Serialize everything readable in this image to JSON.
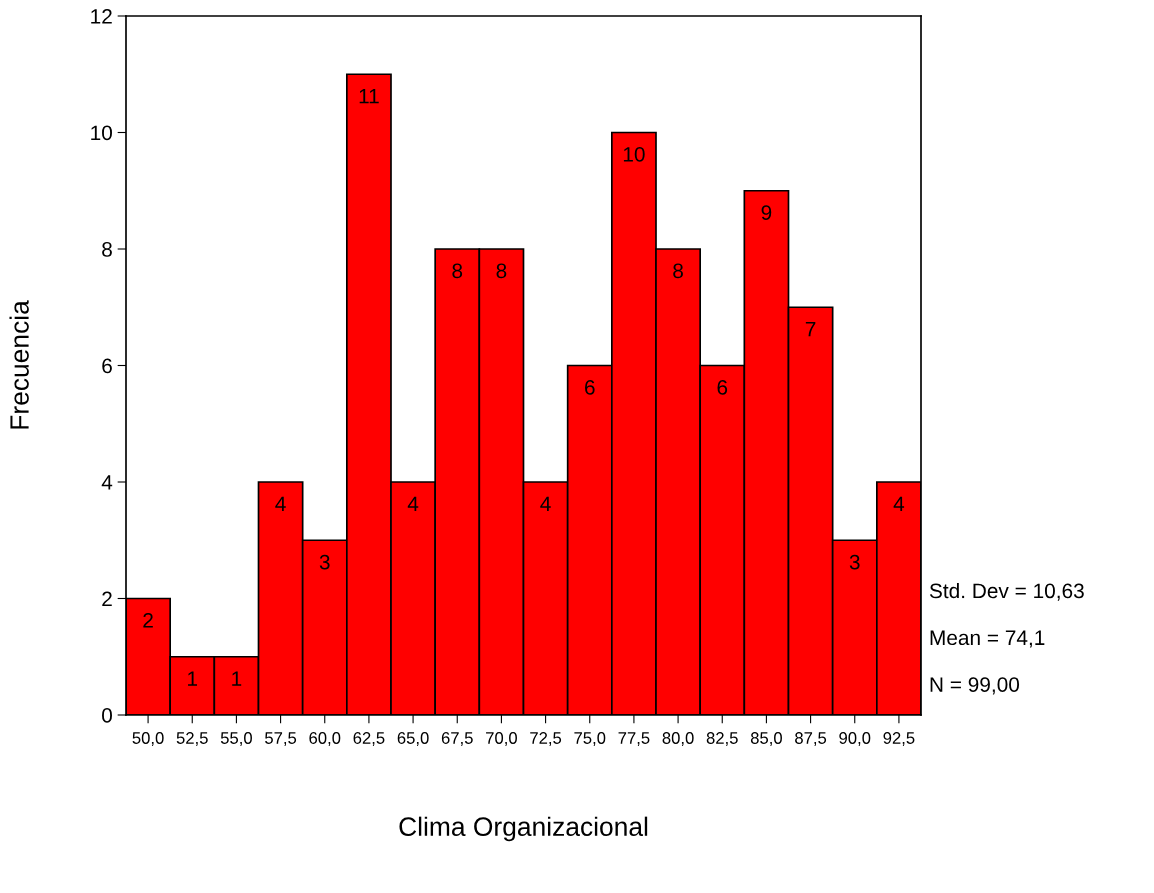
{
  "chart_data": {
    "type": "histogram",
    "xlabel": "Clima Organizacional",
    "ylabel": "Frecuencia",
    "bins": [
      48.75,
      51.25,
      53.75,
      56.25,
      58.75,
      61.25,
      63.75,
      66.25,
      68.75,
      71.25,
      73.75,
      76.25,
      78.75,
      81.25,
      83.75,
      86.25,
      88.75,
      91.25,
      93.75
    ],
    "values": [
      2,
      1,
      1,
      4,
      3,
      11,
      4,
      8,
      8,
      4,
      6,
      10,
      8,
      6,
      9,
      7,
      3,
      4
    ],
    "color": "#ff0000",
    "data_labels": true,
    "grid": false,
    "legend": false,
    "xlim": [
      48.75,
      93.75
    ],
    "xticks": [
      {
        "value": 50,
        "label": "50,0"
      },
      {
        "value": 52.5,
        "label": "52,5"
      },
      {
        "value": 55,
        "label": "55,0"
      },
      {
        "value": 57.5,
        "label": "57,5"
      },
      {
        "value": 60,
        "label": "60,0"
      },
      {
        "value": 62.5,
        "label": "62,5"
      },
      {
        "value": 65,
        "label": "65,0"
      },
      {
        "value": 67.5,
        "label": "67,5"
      },
      {
        "value": 70,
        "label": "70,0"
      },
      {
        "value": 72.5,
        "label": "72,5"
      },
      {
        "value": 75,
        "label": "75,0"
      },
      {
        "value": 77.5,
        "label": "77,5"
      },
      {
        "value": 80,
        "label": "80,0"
      },
      {
        "value": 82.5,
        "label": "82,5"
      },
      {
        "value": 85,
        "label": "85,0"
      },
      {
        "value": 87.5,
        "label": "87,5"
      },
      {
        "value": 90,
        "label": "90,0"
      },
      {
        "value": 92.5,
        "label": "92,5"
      }
    ],
    "ylim": [
      0,
      12
    ],
    "yticks": [
      0,
      2,
      4,
      6,
      8,
      10,
      12
    ],
    "annotations": [
      "Std. Dev = 10,63",
      "Mean = 74,1",
      "N = 99,00"
    ]
  }
}
